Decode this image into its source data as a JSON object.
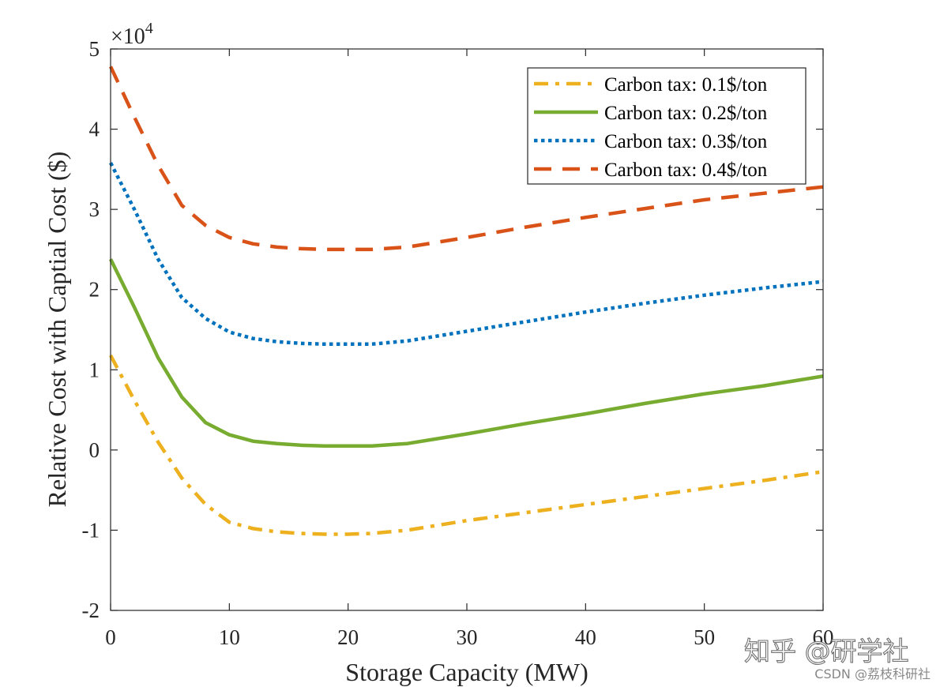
{
  "chart_data": {
    "type": "line",
    "xlabel": "Storage Capacity (MW)",
    "ylabel": "Relative Cost with Captial Cost ($)",
    "y_multiplier_label": {
      "base": "×10",
      "exp": "4"
    },
    "xlim": [
      0,
      60
    ],
    "ylim": [
      -2,
      5
    ],
    "x_ticks": [
      0,
      10,
      20,
      30,
      40,
      50,
      60
    ],
    "y_ticks": [
      -2,
      -1,
      0,
      1,
      2,
      3,
      4,
      5
    ],
    "y_units": "×10^4 $",
    "grid": false,
    "legend_position": "top-right",
    "x": [
      0,
      2,
      4,
      6,
      8,
      10,
      12,
      14,
      16,
      18,
      20,
      22,
      25,
      30,
      35,
      40,
      45,
      50,
      55,
      60
    ],
    "series": [
      {
        "name": "Carbon tax: 0.1$/ton",
        "color": "#EDB120",
        "dash": "dashdot",
        "values": [
          1.18,
          0.62,
          0.1,
          -0.35,
          -0.68,
          -0.9,
          -0.98,
          -1.02,
          -1.04,
          -1.05,
          -1.05,
          -1.04,
          -1.0,
          -0.88,
          -0.78,
          -0.68,
          -0.58,
          -0.48,
          -0.38,
          -0.27
        ]
      },
      {
        "name": "Carbon tax: 0.2$/ton",
        "color": "#77AC30",
        "dash": "solid",
        "values": [
          2.38,
          1.78,
          1.15,
          0.66,
          0.34,
          0.19,
          0.11,
          0.08,
          0.06,
          0.05,
          0.05,
          0.05,
          0.08,
          0.2,
          0.33,
          0.45,
          0.58,
          0.7,
          0.8,
          0.92
        ]
      },
      {
        "name": "Carbon tax: 0.3$/ton",
        "color": "#0072BD",
        "dash": "dotted",
        "values": [
          3.58,
          3.0,
          2.38,
          1.9,
          1.64,
          1.47,
          1.39,
          1.35,
          1.33,
          1.32,
          1.32,
          1.32,
          1.36,
          1.48,
          1.6,
          1.72,
          1.83,
          1.93,
          2.02,
          2.1
        ]
      },
      {
        "name": "Carbon tax: 0.4$/ton",
        "color": "#D95319",
        "dash": "dashed",
        "values": [
          4.78,
          4.15,
          3.55,
          3.05,
          2.8,
          2.65,
          2.57,
          2.53,
          2.51,
          2.5,
          2.5,
          2.5,
          2.53,
          2.65,
          2.78,
          2.9,
          3.01,
          3.12,
          3.2,
          3.28
        ]
      }
    ]
  },
  "watermark": {
    "main": "知乎 @研学社",
    "sub": "CSDN @荔枝科研社"
  }
}
